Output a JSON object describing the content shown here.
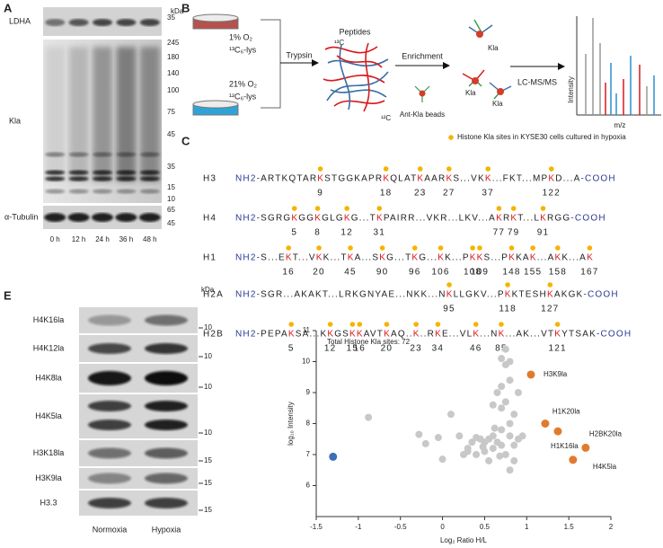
{
  "panel_a": {
    "label": "A",
    "unit": "kDa",
    "blots": [
      {
        "name": "LDHA",
        "markers": [
          35
        ]
      },
      {
        "name": "Kla",
        "markers": [
          245,
          180,
          140,
          100,
          75,
          45,
          35,
          15,
          10
        ]
      },
      {
        "name": "α-Tubulin",
        "markers": [
          65,
          45
        ]
      }
    ],
    "lanes": [
      "0 h",
      "12 h",
      "24 h",
      "36 h",
      "48 h"
    ]
  },
  "panel_b": {
    "label": "B",
    "conditions": [
      {
        "o2": "1% O₂",
        "label": "¹³C₆-lys"
      },
      {
        "o2": "21% O₂",
        "label": "¹²C₆-lys"
      }
    ],
    "steps": [
      "Trypsin",
      "Enrichment",
      "LC-MS/MS"
    ],
    "peptides": "Peptides",
    "heavy": "¹³C",
    "light": "¹²C",
    "beads": "Ant-Kla beads",
    "site": "Kla",
    "spectrum_y": "Intensity",
    "spectrum_x": "m/z"
  },
  "panel_c": {
    "label": "C",
    "legend": "Histone Kla sites in KYSE30 cells cultured in hypoxia",
    "rows": [
      {
        "name": "H3",
        "prefix": "NH2-",
        "suffix": "-COOH",
        "sequence": [
          "ARTKQTAR",
          {
            "residue": "K",
            "site": 9
          },
          "STGGKAPR",
          {
            "residue": "K",
            "site": 18
          },
          "QLAT",
          {
            "residue": "K",
            "site": 23
          },
          "AAR",
          {
            "residue": "K",
            "site": 27
          },
          "S...VK",
          {
            "residue": "K",
            "site": 37
          },
          "...FKT...MP",
          {
            "residue": "K",
            "site": 122
          },
          "D...A"
        ]
      },
      {
        "name": "H4",
        "prefix": "NH2-",
        "suffix": "-COOH",
        "sequence": [
          "SGRG",
          {
            "residue": "K",
            "site": 5
          },
          "GG",
          {
            "residue": "K",
            "site": 8
          },
          "GLG",
          {
            "residue": "K",
            "site": 12
          },
          "G...T",
          {
            "residue": "K",
            "site": 31
          },
          "PAIRR...VKR...LKV...A",
          {
            "residue": "K",
            "site": 77
          },
          "R",
          {
            "residue": "K",
            "site": 79
          },
          "T...L",
          {
            "residue": "K",
            "site": 91
          },
          "RGG"
        ]
      },
      {
        "name": "H1",
        "prefix": "NH2- ",
        "sequence": [
          "S...E",
          {
            "residue": "K",
            "site": 16
          },
          "T...V",
          {
            "residue": "K",
            "site": 20
          },
          "K...T",
          {
            "residue": "K",
            "site": 45
          },
          "A...S",
          {
            "residue": "K",
            "site": 90
          },
          "G...T",
          {
            "residue": "K",
            "site": 96
          },
          "G...",
          {
            "residue": "K",
            "site": 106
          },
          "K...P",
          {
            "residue": "K",
            "site": 108
          },
          {
            "residue": "K",
            "site": 109
          },
          "S...P",
          {
            "residue": "K",
            "site": 148
          },
          "KA",
          {
            "residue": "K",
            "site": 155
          },
          "...A",
          {
            "residue": "K",
            "site": 158
          },
          "K...A",
          {
            "residue": "K",
            "site": 167
          }
        ]
      },
      {
        "name": "H2A",
        "prefix": "NH2-",
        "suffix": "-COOH",
        "sequence": [
          "SGR...AKAKT...LRKGNYAE...NKK...N",
          {
            "residue": "K",
            "site": 95
          },
          "LLGKV...P",
          {
            "residue": "K",
            "site": 118
          },
          "KTESH",
          {
            "residue": "K",
            "site": 127
          },
          "AKGK"
        ]
      },
      {
        "name": "H2B",
        "prefix": "NH2-",
        "suffix": "-COOH",
        "sequence": [
          "PEPA",
          {
            "residue": "K",
            "site": 5
          },
          "SA...K",
          {
            "residue": "K",
            "site": 12
          },
          "GS",
          {
            "residue": "K",
            "site": 15
          },
          {
            "residue": "K",
            "site": 16
          },
          "AVT",
          {
            "residue": "K",
            "site": 20
          },
          "AQ..",
          {
            "residue": "K",
            "site": 23
          },
          "..R",
          {
            "residue": "K",
            "site": 34
          },
          "E...VL",
          {
            "residue": "K",
            "site": 46
          },
          "...N",
          {
            "residue": "K",
            "site": 85
          },
          "...AK...VT",
          {
            "residue": "K",
            "site": 121
          },
          "YTSAK"
        ]
      }
    ]
  },
  "chart_data": {
    "type": "scatter",
    "panel_label": "D",
    "title": "Total Histone Kla sites: 72",
    "xlabel": "Log₂ Ratio H/L",
    "ylabel": "log₁₀ Intensity",
    "xlim": [
      -1.5,
      2
    ],
    "xticks": [
      -1.5,
      -1,
      -0.5,
      0,
      0.5,
      1,
      1.5,
      2
    ],
    "ylim": [
      5,
      11
    ],
    "yticks": [
      6,
      7,
      8,
      9,
      10,
      11
    ],
    "series": [
      {
        "color": "#c8c8c8",
        "x": [
          -0.88,
          -0.28,
          -0.2,
          -0.05,
          0.0,
          0.1,
          0.2,
          0.25,
          0.3,
          0.3,
          0.35,
          0.4,
          0.45,
          0.5,
          0.5,
          0.55,
          0.55,
          0.6,
          0.6,
          0.6,
          0.65,
          0.65,
          0.7,
          0.7,
          0.7,
          0.7,
          0.7,
          0.75,
          0.75,
          0.75,
          0.75,
          0.8,
          0.8,
          0.8,
          0.8,
          0.8,
          0.85,
          0.85,
          0.85,
          0.9,
          0.9,
          0.95,
          0.62,
          0.48,
          0.4,
          0.68
        ],
        "y": [
          8.2,
          7.65,
          7.35,
          7.55,
          6.85,
          8.3,
          7.6,
          7.0,
          7.1,
          7.2,
          7.4,
          7.0,
          7.5,
          7.4,
          7.1,
          7.5,
          6.8,
          8.6,
          7.6,
          7.2,
          9.0,
          7.4,
          10.1,
          9.2,
          8.5,
          7.8,
          7.3,
          10.4,
          9.9,
          8.7,
          7.0,
          10.0,
          9.4,
          8.0,
          7.6,
          6.5,
          8.3,
          7.3,
          6.8,
          9.0,
          7.5,
          7.6,
          7.85,
          7.25,
          7.55,
          6.95
        ]
      },
      {
        "color": "#e07b2e",
        "x": [
          1.05,
          1.22,
          1.37,
          1.7,
          1.55
        ],
        "y": [
          9.58,
          8.0,
          7.75,
          7.22,
          6.83
        ],
        "labels": [
          "H3K9la",
          "H1K20la",
          "H1K16la",
          "H2BK20la",
          "H4K5la"
        ]
      },
      {
        "color": "#3b6fb6",
        "x": [
          -1.3
        ],
        "y": [
          6.93
        ]
      }
    ]
  },
  "panel_e": {
    "label": "E",
    "unit": "kDa",
    "blots": [
      {
        "name": "H4K16la",
        "marker": 10
      },
      {
        "name": "H4K12la",
        "marker": 10
      },
      {
        "name": "H4K8la",
        "marker": 10
      },
      {
        "name": "H4K5la",
        "marker": 10
      },
      {
        "name": "H3K18la",
        "marker": 15
      },
      {
        "name": "H3K9la",
        "marker": 15
      },
      {
        "name": "H3.3",
        "marker": 15
      }
    ],
    "lanes": [
      "Normoxia",
      "Hypoxia"
    ]
  }
}
